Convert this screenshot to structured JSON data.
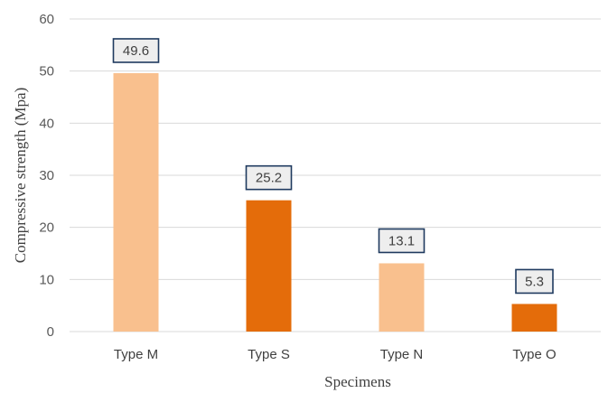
{
  "chart_data": {
    "type": "bar",
    "categories": [
      "Type M",
      "Type S",
      "Type N",
      "Type O"
    ],
    "values": [
      49.6,
      25.2,
      13.1,
      5.3
    ],
    "data_labels": [
      "49.6",
      "25.2",
      "13.1",
      "5.3"
    ],
    "bar_colors": [
      "#f9c08e",
      "#e46c0a",
      "#f9c08e",
      "#e46c0a"
    ],
    "title": "",
    "xlabel": "Specimens",
    "ylabel": "Compressive strength (Mpa)",
    "ylim": [
      0,
      60
    ],
    "yticks": [
      0,
      10,
      20,
      30,
      40,
      50,
      60
    ],
    "grid": true,
    "legend": "none"
  }
}
